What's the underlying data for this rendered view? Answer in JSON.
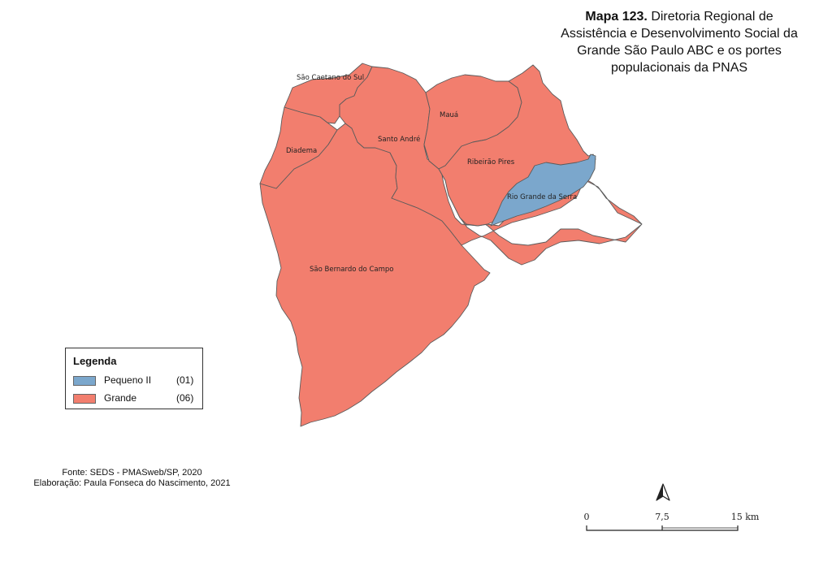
{
  "title": {
    "bold": "Mapa 123.",
    "rest": "Diretoria Regional de Assistência e Desenvolvimento Social da Grande São Paulo ABC e os portes populacionais da PNAS"
  },
  "colors": {
    "grande": "#f27e6e",
    "pequeno_ii": "#7ba7cc",
    "border": "#5b5b5b"
  },
  "municipalities": [
    {
      "name": "São Caetano do Sul",
      "porte": "Grande"
    },
    {
      "name": "Diadema",
      "porte": "Grande"
    },
    {
      "name": "Santo André",
      "porte": "Grande"
    },
    {
      "name": "Mauá",
      "porte": "Grande"
    },
    {
      "name": "Ribeirão Pires",
      "porte": "Grande"
    },
    {
      "name": "Rio Grande da Serra",
      "porte": "Pequeno II"
    },
    {
      "name": "São Bernardo do Campo",
      "porte": "Grande"
    }
  ],
  "legend": {
    "title": "Legenda",
    "items": [
      {
        "label": "Pequeno II",
        "count": "(01)",
        "color": "#7ba7cc"
      },
      {
        "label": "Grande",
        "count": "(06)",
        "color": "#f27e6e"
      }
    ]
  },
  "source": {
    "line1": "Fonte: SEDS - PMASweb/SP, 2020",
    "line2": "Elaboração: Paula Fonseca do Nascimento, 2021"
  },
  "scale_bar": {
    "ticks": [
      "0",
      "7,5",
      "15 km"
    ]
  },
  "north_arrow": {
    "icon": "north-arrow-icon"
  }
}
